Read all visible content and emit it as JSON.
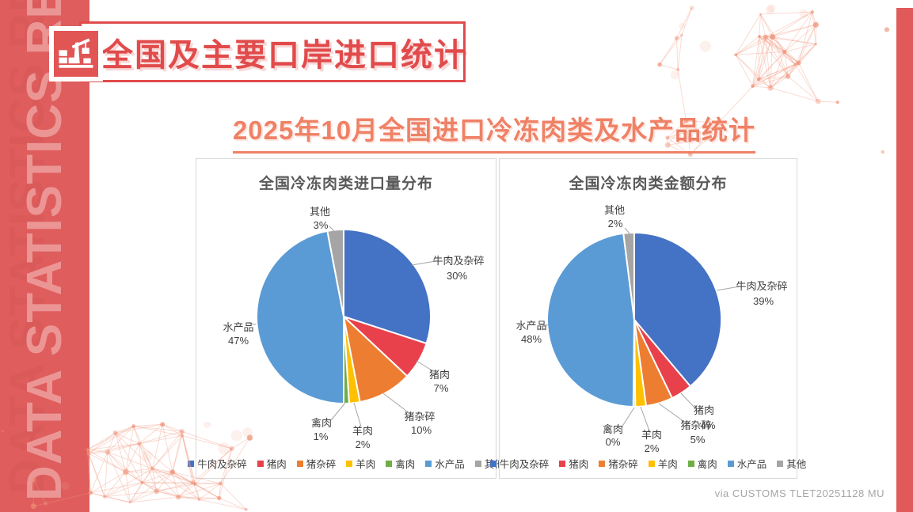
{
  "sidebar": {
    "text": "DATA STATISTICS REPORT"
  },
  "header": {
    "title": "全国及主要口岸进口统计",
    "icon": "port-crane-icon"
  },
  "subtitle": {
    "text": "2025年10月全国进口冷冻肉类及水产品统计"
  },
  "footer": {
    "credit": "via CUSTOMS TLET20251128 MU"
  },
  "colors": {
    "banner_red": "#df5d5d",
    "accent_red": "#e14b4b",
    "subtitle_coral": "#ef8166",
    "chart_title_gray": "#595959",
    "leader_gray": "#a6a6a6",
    "card_border": "#d8d8d8"
  },
  "chart_data": [
    {
      "type": "pie",
      "title": "全国冷冻肉类进口量分布",
      "categories": [
        "牛肉及杂碎",
        "猪肉",
        "猪杂碎",
        "羊肉",
        "禽肉",
        "水产品",
        "其他"
      ],
      "values": [
        30,
        7,
        10,
        2,
        1,
        47,
        3
      ],
      "unit": "%",
      "colors": [
        "#4472C4",
        "#E8414B",
        "#ED7D31",
        "#FFC000",
        "#70AD47",
        "#5B9BD5",
        "#A5A5A5"
      ],
      "legend_position": "bottom",
      "start_angle": 0,
      "direction": "clockwise"
    },
    {
      "type": "pie",
      "title": "全国冷冻肉类金额分布",
      "categories": [
        "牛肉及杂碎",
        "猪肉",
        "猪杂碎",
        "羊肉",
        "禽肉",
        "水产品",
        "其他"
      ],
      "values": [
        39,
        4,
        5,
        2,
        0,
        48,
        2
      ],
      "unit": "%",
      "colors": [
        "#4472C4",
        "#E8414B",
        "#ED7D31",
        "#FFC000",
        "#70AD47",
        "#5B9BD5",
        "#A5A5A5"
      ],
      "legend_position": "bottom",
      "start_angle": 0,
      "direction": "clockwise"
    }
  ]
}
